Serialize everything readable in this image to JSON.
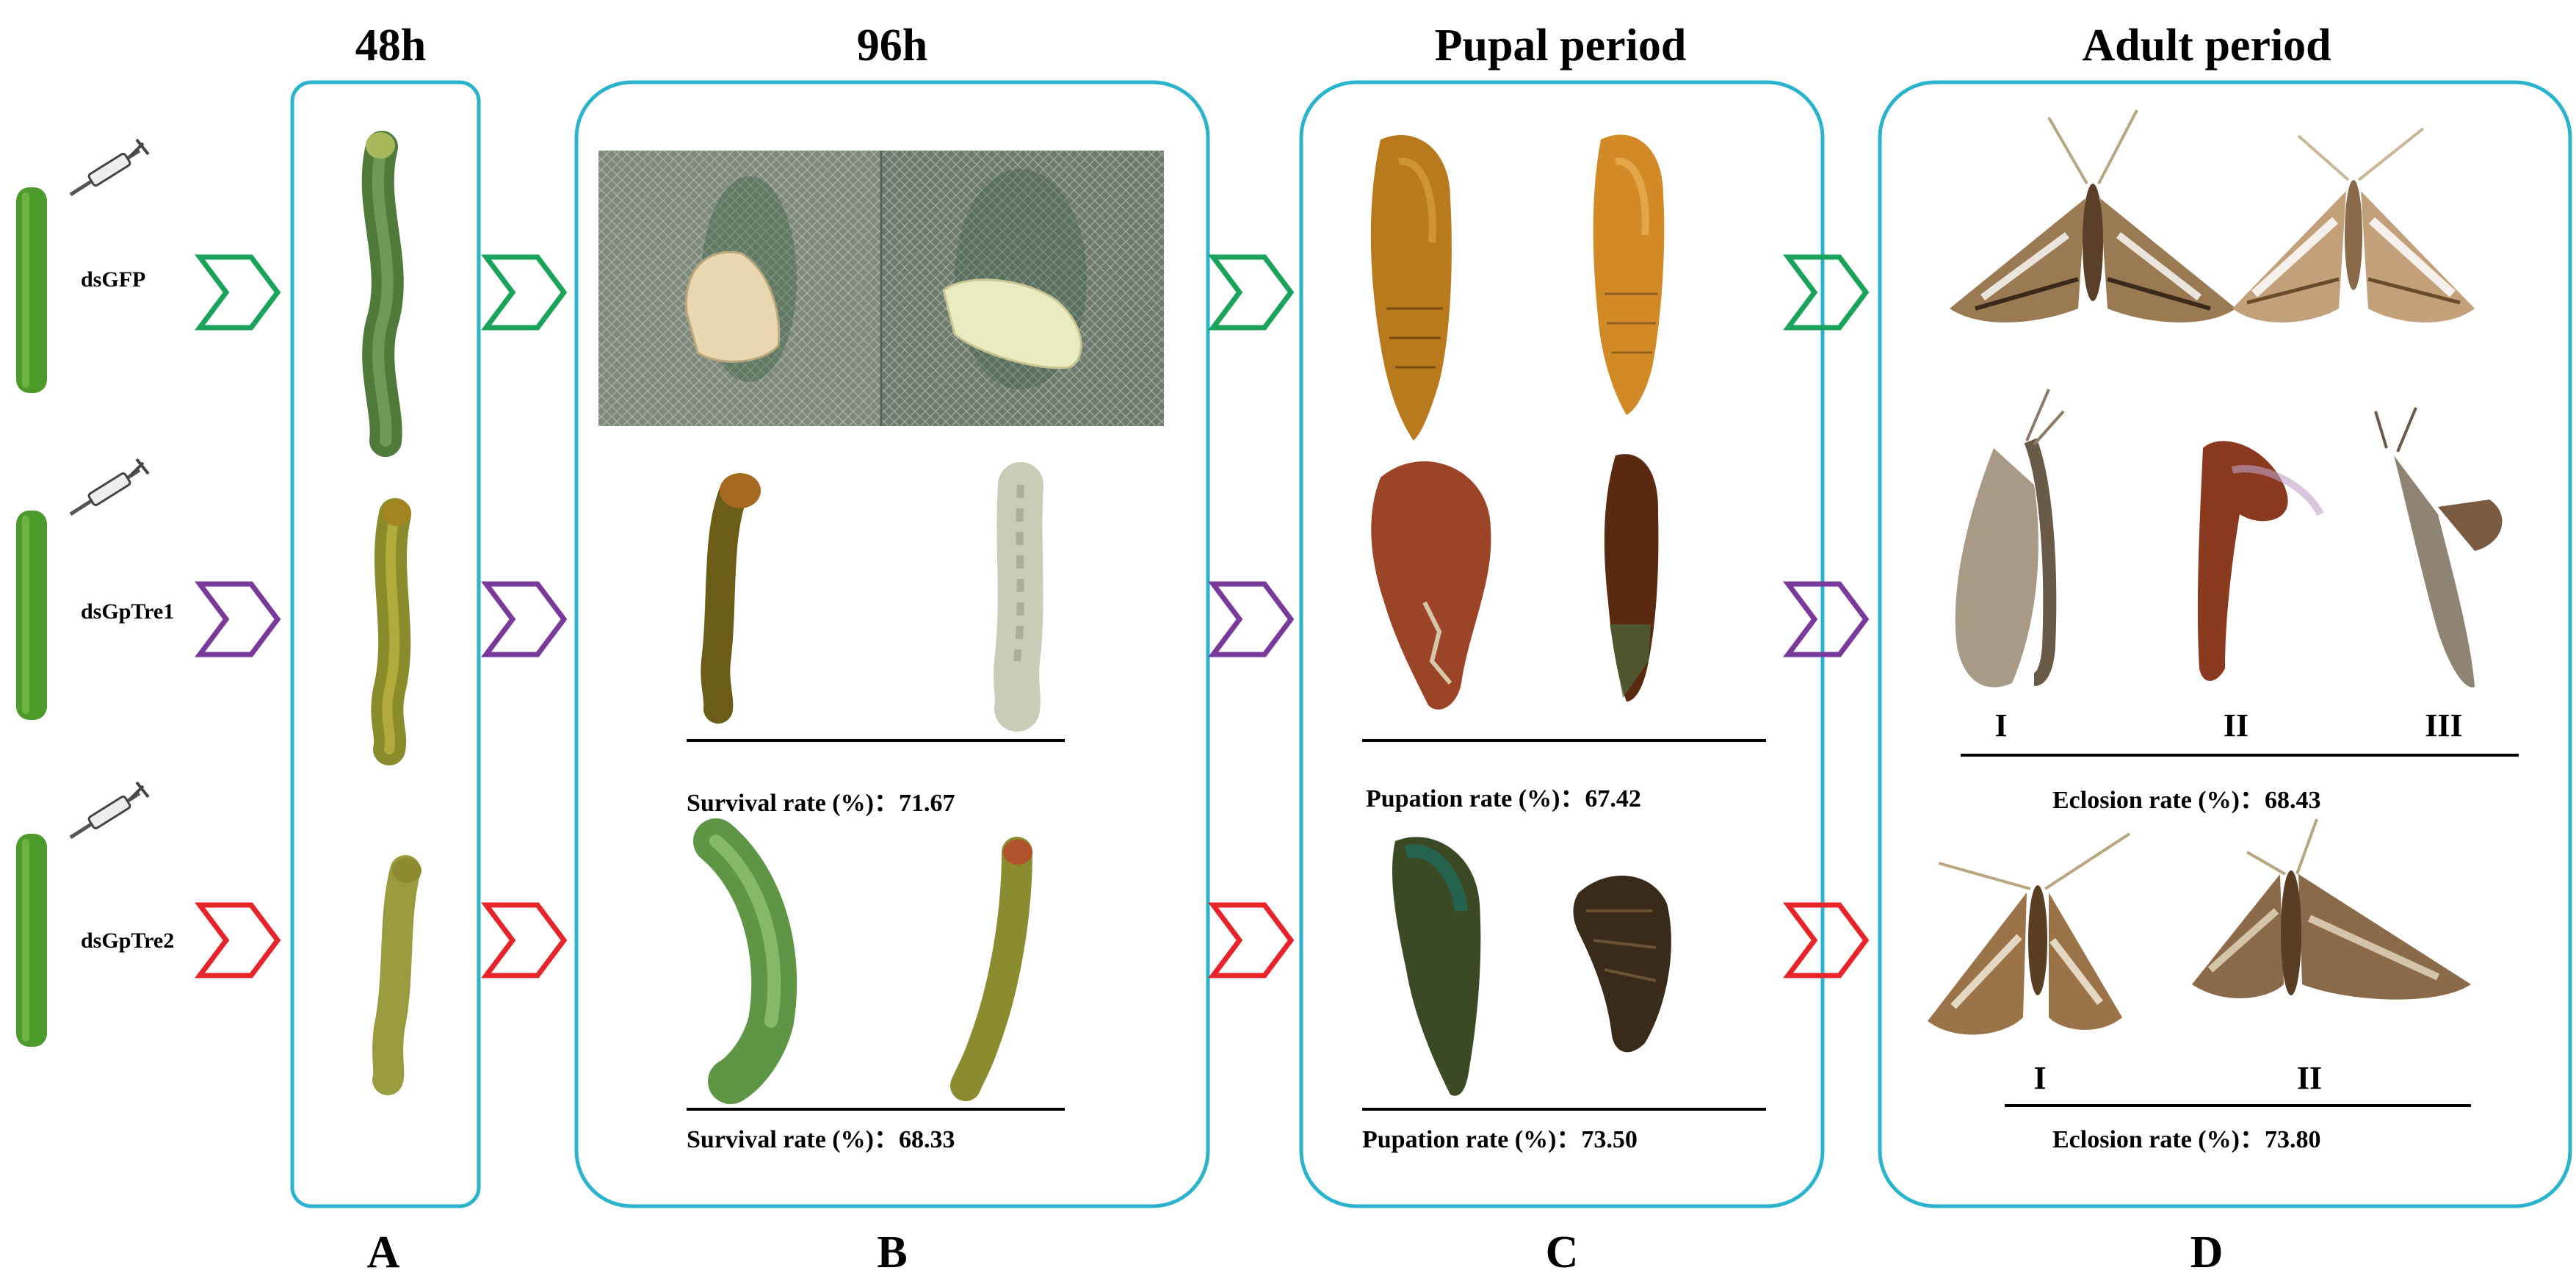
{
  "columns": {
    "h48": {
      "title": "48h",
      "label": "A"
    },
    "h96": {
      "title": "96h",
      "label": "B"
    },
    "pupal": {
      "title": "Pupal period",
      "label": "C"
    },
    "adult": {
      "title": "Adult period",
      "label": "D"
    }
  },
  "treatments": [
    {
      "name": "dsGFP",
      "color": "#1aa35a"
    },
    {
      "name": "dsGpTre1",
      "color": "#7a3a9c"
    },
    {
      "name": "dsGpTre2",
      "color": "#e8242b"
    }
  ],
  "box_color": "#2ab3cc",
  "rates": {
    "survival_tre1": "Survival rate (%)：71.67",
    "survival_tre2": "Survival rate (%)：68.33",
    "pupation_tre1": "Pupation rate (%)：67.42",
    "pupation_tre2": "Pupation rate (%)：73.50",
    "eclosion_tre1": "Eclosion rate (%)：68.43",
    "eclosion_tre2": "Eclosion rate (%)：73.80"
  },
  "phenotypes_tre1": [
    "I",
    "II",
    "III"
  ],
  "phenotypes_tre2": [
    "I",
    "II"
  ]
}
